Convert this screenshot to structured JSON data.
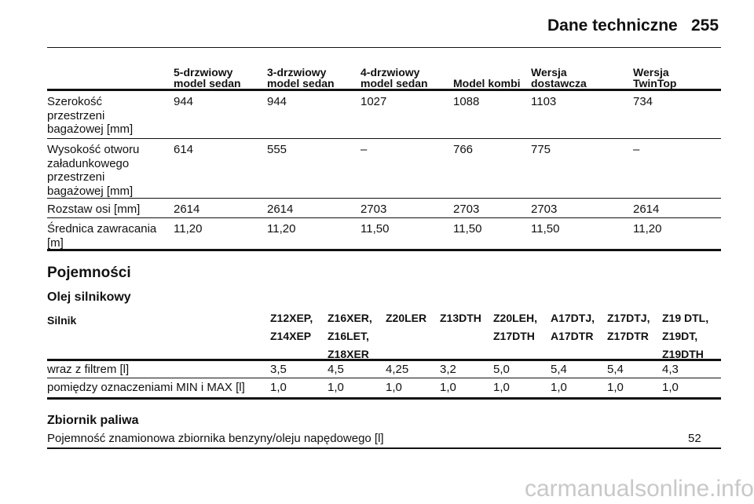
{
  "header": {
    "title": "Dane techniczne",
    "page_number": "255"
  },
  "dimensions_table": {
    "columns": [
      [
        "5-drzwiowy",
        "model sedan"
      ],
      [
        "3-drzwiowy",
        "model sedan"
      ],
      [
        "4-drzwiowy",
        "model sedan"
      ],
      [
        "Model kombi"
      ],
      [
        "Wersja",
        "dostawcza"
      ],
      [
        "Wersja",
        "TwinTop"
      ]
    ],
    "rows": [
      {
        "label": [
          "Szerokość",
          "przestrzeni",
          "bagażowej [mm]"
        ],
        "values": [
          "944",
          "944",
          "1027",
          "1088",
          "1103",
          "734"
        ]
      },
      {
        "label": [
          "Wysokość otworu",
          "załadunkowego",
          "przestrzeni",
          "bagażowej [mm]"
        ],
        "values": [
          "614",
          "555",
          "–",
          "766",
          "775",
          "–"
        ]
      },
      {
        "label": [
          "Rozstaw osi [mm]"
        ],
        "values": [
          "2614",
          "2614",
          "2703",
          "2703",
          "2703",
          "2614"
        ]
      },
      {
        "label": [
          "Średnica zawracania",
          "[m]"
        ],
        "values": [
          "11,20",
          "11,20",
          "11,50",
          "11,50",
          "11,50",
          "11,20"
        ]
      }
    ]
  },
  "section_title": "Pojemności",
  "oil": {
    "title": "Olej silnikowy",
    "header_label": "Silnik",
    "engines": [
      [
        "Z12XEP,",
        "Z14XEP"
      ],
      [
        "Z16XER,",
        "Z16LET,",
        "Z18XER"
      ],
      [
        "Z20LER"
      ],
      [
        "Z13DTH"
      ],
      [
        "Z20LEH,",
        "Z17DTH"
      ],
      [
        "A17DTJ,",
        "A17DTR"
      ],
      [
        "Z17DTJ,",
        "Z17DTR"
      ],
      [
        "Z19 DTL,",
        "Z19DT,",
        "Z19DTH"
      ]
    ],
    "rows": [
      {
        "label": "wraz z filtrem [l]",
        "values": [
          "3,5",
          "4,5",
          "4,25",
          "3,2",
          "5,0",
          "5,4",
          "5,4",
          "4,3"
        ]
      },
      {
        "label": "pomiędzy oznaczeniami MIN i MAX [l]",
        "values": [
          "1,0",
          "1,0",
          "1,0",
          "1,0",
          "1,0",
          "1,0",
          "1,0",
          "1,0"
        ]
      }
    ]
  },
  "fuel": {
    "title": "Zbiornik paliwa",
    "label": "Pojemność znamionowa zbiornika benzyny/oleju napędowego [l]",
    "value": "52"
  },
  "watermark": "carmanualsonline.info"
}
